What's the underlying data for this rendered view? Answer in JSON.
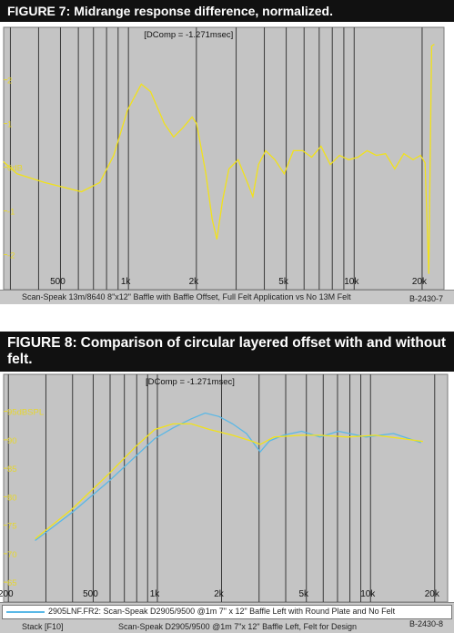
{
  "chart_data": [
    {
      "type": "line",
      "figure_label": "FIGURE 7:",
      "title": "Midrange response difference, normalized.",
      "annotation": "[DComp = -1.271msec]",
      "xscale": "log",
      "grid": true,
      "xlim": [
        280,
        25000
      ],
      "ylim": [
        -2.8,
        3.2
      ],
      "xticks": [
        {
          "value": 300,
          "label": null
        },
        {
          "value": 400,
          "label": null
        },
        {
          "value": 500,
          "label": "500"
        },
        {
          "value": 600,
          "label": null
        },
        {
          "value": 700,
          "label": null
        },
        {
          "value": 800,
          "label": null
        },
        {
          "value": 900,
          "label": null
        },
        {
          "value": 1000,
          "label": "1k"
        },
        {
          "value": 2000,
          "label": "2k"
        },
        {
          "value": 3000,
          "label": null
        },
        {
          "value": 4000,
          "label": null
        },
        {
          "value": 5000,
          "label": "5k"
        },
        {
          "value": 6000,
          "label": null
        },
        {
          "value": 7000,
          "label": null
        },
        {
          "value": 8000,
          "label": null
        },
        {
          "value": 9000,
          "label": null
        },
        {
          "value": 10000,
          "label": "10k"
        },
        {
          "value": 20000,
          "label": "20k"
        }
      ],
      "yticks": [
        2,
        1,
        {
          "value": 0,
          "label": "0dB"
        },
        -1,
        -2
      ],
      "series": [
        {
          "name": "Scan-Speak 13m/8640 8\"x12\" Baffle with Baffle Offset, Full Felt Application vs No 13M Felt",
          "color": "#f2e21a",
          "x": [
            279,
            321,
            425,
            619,
            747,
            861,
            991,
            1140,
            1253,
            1442,
            1585,
            1741,
            1914,
            2005,
            2203,
            2350,
            2466,
            2608,
            2786,
            3062,
            3365,
            3556,
            3767,
            4055,
            4457,
            4898,
            5383,
            5902,
            6486,
            7129,
            7834,
            8610,
            9462,
            10380,
            11410,
            12530,
            13770,
            15130,
            16600,
            18240,
            19680,
            20610,
            21410,
            22030,
            22650
          ],
          "values": [
            0.13,
            -0.15,
            -0.35,
            -0.56,
            -0.35,
            0.27,
            1.31,
            1.9,
            1.73,
            1.0,
            0.69,
            0.9,
            1.15,
            1.0,
            -0.15,
            -1.19,
            -1.65,
            -0.77,
            -0.04,
            0.17,
            -0.35,
            -0.67,
            0.06,
            0.38,
            0.17,
            -0.15,
            0.38,
            0.38,
            0.23,
            0.48,
            0.06,
            0.27,
            0.17,
            0.23,
            0.38,
            0.27,
            0.31,
            -0.04,
            0.31,
            0.17,
            0.27,
            0.1,
            -2.44,
            2.77,
            2.81
          ]
        }
      ],
      "figure_id": "B-2430-7"
    },
    {
      "type": "line",
      "figure_label": "FIGURE 8:",
      "title": "Comparison of circular layered offset with and without felt.",
      "annotation": "[DComp = -1.271msec]",
      "xscale": "log",
      "grid": true,
      "xlim": [
        190,
        23000
      ],
      "ylim": [
        61.5,
        101.5
      ],
      "xticks": [
        {
          "value": 200,
          "label": "200"
        },
        {
          "value": 300,
          "label": null
        },
        {
          "value": 400,
          "label": null
        },
        {
          "value": 500,
          "label": "500"
        },
        {
          "value": 600,
          "label": null
        },
        {
          "value": 700,
          "label": null
        },
        {
          "value": 800,
          "label": null
        },
        {
          "value": 900,
          "label": null
        },
        {
          "value": 1000,
          "label": "1k"
        },
        {
          "value": 2000,
          "label": "2k"
        },
        {
          "value": 3000,
          "label": null
        },
        {
          "value": 4000,
          "label": null
        },
        {
          "value": 5000,
          "label": "5k"
        },
        {
          "value": 6000,
          "label": null
        },
        {
          "value": 7000,
          "label": null
        },
        {
          "value": 8000,
          "label": null
        },
        {
          "value": 9000,
          "label": null
        },
        {
          "value": 10000,
          "label": "10k"
        },
        {
          "value": 20000,
          "label": "20k"
        }
      ],
      "yticks": [
        {
          "value": 95,
          "label": "95dBSPL"
        },
        90,
        85,
        80,
        75,
        70,
        65
      ],
      "series": [
        {
          "name": "2905LNF.FR2:  Scan-Speak D2905/9500 @1m 7\" x 12\" Baffle Left with Round Plate and No Felt",
          "color": "#5ab8e6",
          "x": [
            267,
            397,
            591,
            796,
            971,
            1184,
            1443,
            1675,
            1945,
            2254,
            2618,
            2893,
            3040,
            3357,
            3898,
            4750,
            5794,
            7063,
            9515,
            12820,
            17270
          ],
          "values": [
            72.3,
            77.2,
            82.7,
            87.2,
            90.2,
            92.1,
            93.7,
            94.7,
            94.1,
            92.8,
            91.1,
            88.9,
            87.9,
            89.8,
            90.8,
            91.5,
            90.5,
            91.5,
            90.5,
            91.1,
            89.5
          ]
        },
        {
          "name": "Scan-Speak D2905/9500 @1m 7\"x 12\" Baffle Left, Felt for Design",
          "color": "#f2e21a",
          "x": [
            267,
            397,
            591,
            796,
            971,
            1184,
            1443,
            1762,
            2254,
            2754,
            3040,
            3525,
            4750,
            5794,
            7800,
            10520,
            14150,
            17620
          ],
          "values": [
            72.6,
            77.8,
            84.0,
            88.9,
            91.8,
            92.8,
            92.8,
            91.8,
            90.8,
            89.8,
            89.2,
            90.5,
            90.8,
            90.8,
            90.5,
            90.8,
            90.2,
            89.7
          ]
        }
      ],
      "stack_label": "Stack [F10]",
      "figure_id": "B-2430-8"
    }
  ]
}
